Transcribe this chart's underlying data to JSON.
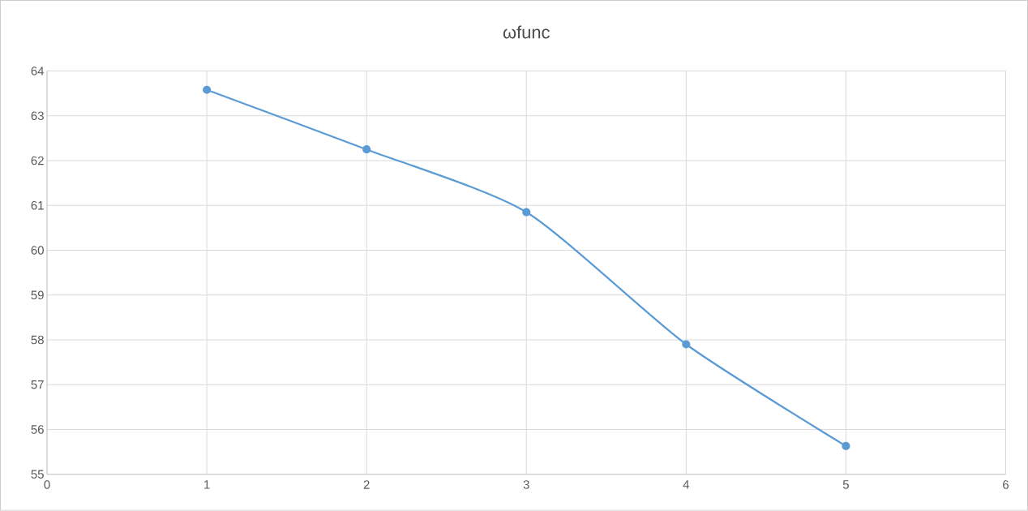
{
  "chart_data": {
    "type": "line",
    "title": "ωfunc",
    "x": [
      1,
      2,
      3,
      4,
      5
    ],
    "series": [
      {
        "color": "#5b9bd5",
        "values": [
          63.58,
          62.25,
          60.85,
          57.9,
          55.63
        ]
      }
    ],
    "xlim": [
      0,
      6
    ],
    "xticks": [
      0,
      1,
      2,
      3,
      4,
      5,
      6
    ],
    "ylim": [
      55,
      64
    ],
    "yticks": [
      55,
      56,
      57,
      58,
      59,
      60,
      61,
      62,
      63,
      64
    ],
    "grid": true,
    "marker": "circle",
    "line_style": "solid"
  }
}
